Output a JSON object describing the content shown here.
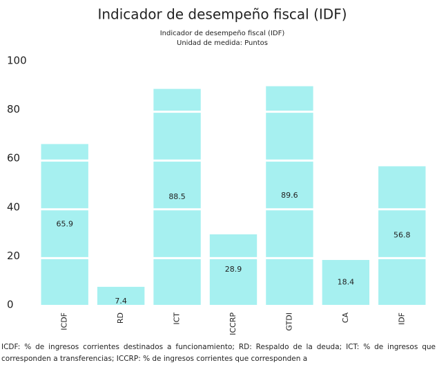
{
  "chart_data": {
    "type": "bar",
    "title": "Indicador de desempeño fiscal (IDF)",
    "subtitle": [
      "Indicador de desempeño fiscal (IDF)",
      "Unidad de medida: Puntos"
    ],
    "categories": [
      "ICDF",
      "RD",
      "ICT",
      "ICCRP",
      "GTDI",
      "CA",
      "IDF"
    ],
    "values": [
      65.9,
      7.4,
      88.5,
      28.9,
      89.6,
      18.4,
      56.8
    ],
    "color": "#a6f0f0",
    "ylim": [
      0,
      100
    ],
    "yticks": [
      0,
      20,
      40,
      60,
      80,
      100
    ],
    "grid": true,
    "footnote": "ICDF: % de ingresos corrientes destinados a funcionamiento; RD: Respaldo de la deuda; ICT: % de ingresos que corresponden a transferencias; ICCRP: % de ingresos corrientes que corresponden a"
  }
}
